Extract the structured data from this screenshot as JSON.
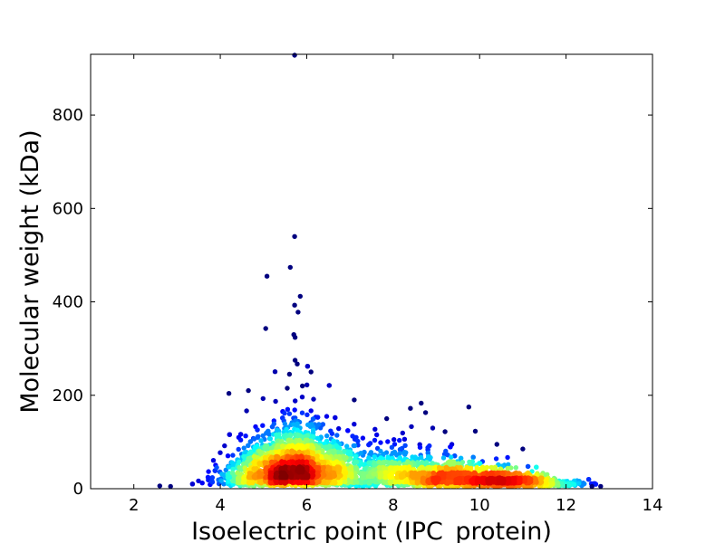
{
  "chart_data": {
    "type": "scatter",
    "xlabel": "Isoelectric point (IPC_protein)",
    "ylabel": "Molecular weight (kDa)",
    "xlim": [
      1,
      14
    ],
    "ylim": [
      0,
      930
    ],
    "x_ticks": [
      2,
      4,
      6,
      8,
      10,
      12,
      14
    ],
    "y_ticks": [
      0,
      200,
      400,
      600,
      800
    ],
    "grid": false,
    "colormap": "jet",
    "color_encodes": "point density",
    "colors": [
      "#00007f",
      "#0000ff",
      "#007fff",
      "#00ffff",
      "#7fff7f",
      "#ffff00",
      "#ff7f00",
      "#ff0000",
      "#7f0000"
    ],
    "clusters": [
      {
        "x_center": 5.7,
        "y_center": 32,
        "x_spread": 0.55,
        "y_spread": 14,
        "density": "highest"
      },
      {
        "x_center": 8.5,
        "y_center": 28,
        "x_spread": 0.9,
        "y_spread": 18,
        "density": "high"
      },
      {
        "x_center": 10.5,
        "y_center": 24,
        "x_spread": 0.7,
        "y_spread": 16,
        "density": "medium"
      }
    ],
    "outliers": [
      {
        "x": 5.72,
        "y": 928
      },
      {
        "x": 5.72,
        "y": 540
      },
      {
        "x": 5.62,
        "y": 474
      },
      {
        "x": 5.08,
        "y": 455
      },
      {
        "x": 5.85,
        "y": 412
      },
      {
        "x": 5.72,
        "y": 393
      },
      {
        "x": 5.8,
        "y": 378
      },
      {
        "x": 5.05,
        "y": 343
      },
      {
        "x": 5.7,
        "y": 330
      },
      {
        "x": 5.73,
        "y": 324
      },
      {
        "x": 5.73,
        "y": 275
      },
      {
        "x": 5.78,
        "y": 267
      },
      {
        "x": 6.1,
        "y": 250
      },
      {
        "x": 5.6,
        "y": 245
      },
      {
        "x": 4.65,
        "y": 210
      },
      {
        "x": 4.2,
        "y": 204
      },
      {
        "x": 5.55,
        "y": 215
      },
      {
        "x": 5.9,
        "y": 220
      },
      {
        "x": 7.1,
        "y": 190
      },
      {
        "x": 8.65,
        "y": 183
      },
      {
        "x": 8.75,
        "y": 163
      },
      {
        "x": 9.75,
        "y": 175
      },
      {
        "x": 9.9,
        "y": 123
      },
      {
        "x": 7.85,
        "y": 150
      },
      {
        "x": 8.4,
        "y": 172
      },
      {
        "x": 9.2,
        "y": 122
      },
      {
        "x": 10.4,
        "y": 95
      },
      {
        "x": 11.0,
        "y": 85
      },
      {
        "x": 2.6,
        "y": 6
      },
      {
        "x": 2.85,
        "y": 4
      },
      {
        "x": 12.8,
        "y": 5
      },
      {
        "x": 12.6,
        "y": 4
      }
    ]
  }
}
